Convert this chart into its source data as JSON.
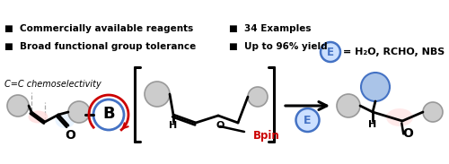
{
  "bg_color": "#ffffff",
  "bullet_items_left": [
    "Broad functional group tolerance",
    "Commercially available reagents"
  ],
  "bullet_items_right": [
    "Up to 96% yield",
    "34 Examples"
  ],
  "italic_text": "C=C chemoselectivity",
  "bpin_color": "#cc0000",
  "boron_circle_color": "#4472c4",
  "boron_text_color": "#000000",
  "e_circle_color": "#4472c4",
  "e_circle_fill": "#cce0ff",
  "e_text_color": "#4472c4",
  "product_blue_fill": "#aac4e8",
  "product_blue_edge": "#4472c4",
  "gray_circle_color": "#999999",
  "gray_circle_fill": "#cccccc",
  "pink_fill": "#ffdddd",
  "pink_blue_fill": "#ddeeff",
  "bond_color": "#000000",
  "text_color": "#000000",
  "electrophile_text": "= H₂O, RCHO, NBS",
  "e_label": "E"
}
